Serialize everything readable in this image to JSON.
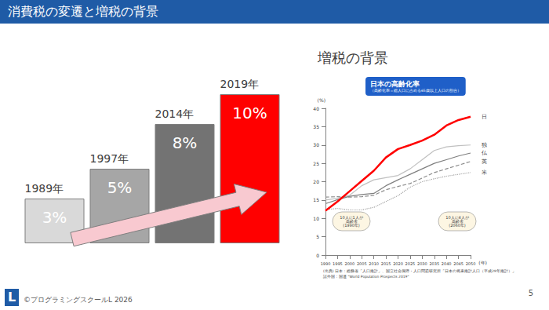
{
  "slide": {
    "title": "消費税の変遷と増税の背景",
    "heading": "増税の背景",
    "logo": "L",
    "footer": "©プログラミングスクールL 2026",
    "page": 5
  },
  "chart_data": [
    {
      "type": "bar",
      "categories": [
        "1989年",
        "1997年",
        "2014年",
        "2019年"
      ],
      "values": [
        3,
        5,
        8,
        10
      ],
      "value_labels": [
        "3%",
        "5%",
        "8%",
        "10%"
      ],
      "colors": [
        "#d9d9d9",
        "#a6a6a6",
        "#737373",
        "#ff0000"
      ],
      "ylim": [
        0,
        10
      ],
      "data_labels": true,
      "tick_labels": false,
      "grid": false
    },
    {
      "type": "line",
      "title": "日本の高齢化率",
      "subtitle": "（高齢化率＝総人口に占める65歳以上人口の割合）",
      "xlabel": "(年)",
      "ylabel": "(%)",
      "x": [
        1990,
        1995,
        2000,
        2005,
        2010,
        2015,
        2020,
        2025,
        2030,
        2035,
        2040,
        2045,
        2050
      ],
      "xlim": [
        1990,
        2050
      ],
      "xticks": [
        1990,
        1995,
        2000,
        2005,
        2010,
        2015,
        2020,
        2025,
        2030,
        2035,
        2040,
        2045,
        2050
      ],
      "ylim": [
        0,
        40
      ],
      "yticks": [
        0,
        5,
        10,
        15,
        20,
        25,
        30,
        35,
        40
      ],
      "grid": false,
      "series": [
        {
          "name": "日",
          "color": "#ff0000",
          "line_style": "solid",
          "values": [
            12.1,
            14.6,
            17.4,
            20.2,
            23.0,
            26.6,
            28.9,
            30.0,
            31.2,
            32.8,
            35.3,
            36.8,
            37.7
          ]
        },
        {
          "name": "独",
          "color": "#c0c0c0",
          "line_style": "solid",
          "values": [
            15.0,
            15.5,
            16.3,
            18.9,
            20.5,
            21.1,
            21.7,
            23.5,
            26.0,
            28.5,
            29.5,
            29.8,
            30.0
          ]
        },
        {
          "name": "仏",
          "color": "#7f7f7f",
          "line_style": "solid",
          "values": [
            14.0,
            15.1,
            16.0,
            16.5,
            16.8,
            18.9,
            20.5,
            22.0,
            23.5,
            25.0,
            26.0,
            27.0,
            27.8
          ]
        },
        {
          "name": "英",
          "color": "#8c8c8c",
          "line_style": "dashed",
          "values": [
            15.8,
            15.9,
            15.8,
            15.9,
            16.3,
            17.8,
            18.7,
            19.5,
            21.0,
            22.5,
            23.5,
            24.5,
            25.5
          ]
        },
        {
          "name": "米",
          "color": "#a6a6a6",
          "line_style": "dotted",
          "values": [
            12.4,
            12.7,
            12.3,
            12.3,
            13.0,
            14.6,
            16.2,
            18.5,
            20.0,
            20.8,
            21.5,
            22.0,
            22.5
          ]
        }
      ],
      "annotations": [
        "10人に1人が\n高齢者\n(1990年)",
        "10人に4人が\n高齢者\n(2060年)"
      ],
      "source": [
        "(出典) 日本：総務省「人口推計」、国立社会保障・人口問題研究所「日本の将来推計人口（平成29年推計）」",
        "諸外国：国連 \"World Population Prospects 2019\""
      ]
    }
  ]
}
